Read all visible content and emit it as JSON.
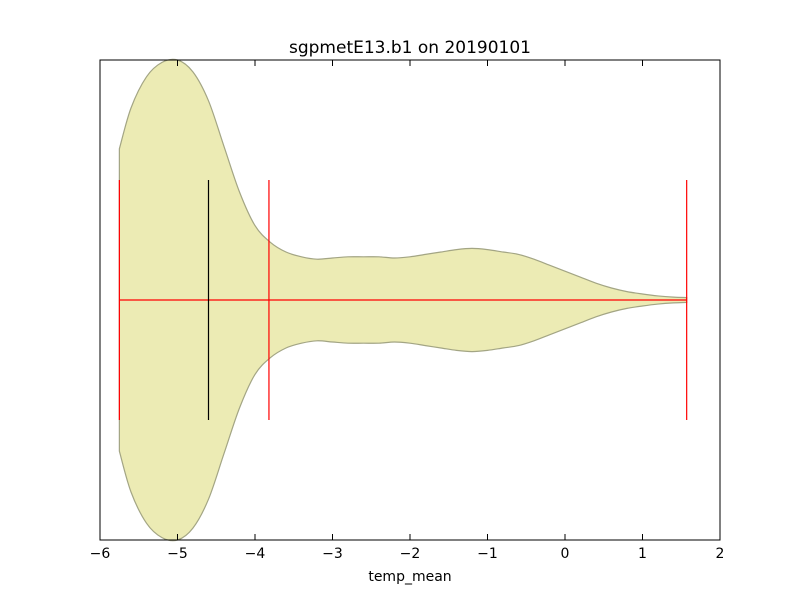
{
  "chart_data": {
    "type": "violin",
    "orientation": "horizontal",
    "title": "sgpmetE13.b1 on 20190101",
    "xlabel": "temp_mean",
    "ylabel": "",
    "xlim": [
      -6,
      2
    ],
    "xticks": [
      -6,
      -5,
      -4,
      -3,
      -2,
      -1,
      0,
      1,
      2
    ],
    "grid": false,
    "density_profile": [
      {
        "x": -5.75,
        "width": 0.63
      },
      {
        "x": -5.6,
        "width": 0.8
      },
      {
        "x": -5.4,
        "width": 0.93
      },
      {
        "x": -5.2,
        "width": 0.99
      },
      {
        "x": -5.0,
        "width": 1.0
      },
      {
        "x": -4.8,
        "width": 0.95
      },
      {
        "x": -4.6,
        "width": 0.83
      },
      {
        "x": -4.4,
        "width": 0.64
      },
      {
        "x": -4.2,
        "width": 0.45
      },
      {
        "x": -4.0,
        "width": 0.31
      },
      {
        "x": -3.8,
        "width": 0.24
      },
      {
        "x": -3.6,
        "width": 0.2
      },
      {
        "x": -3.4,
        "width": 0.18
      },
      {
        "x": -3.2,
        "width": 0.17
      },
      {
        "x": -3.0,
        "width": 0.175
      },
      {
        "x": -2.8,
        "width": 0.18
      },
      {
        "x": -2.6,
        "width": 0.18
      },
      {
        "x": -2.4,
        "width": 0.18
      },
      {
        "x": -2.2,
        "width": 0.175
      },
      {
        "x": -2.0,
        "width": 0.18
      },
      {
        "x": -1.8,
        "width": 0.19
      },
      {
        "x": -1.6,
        "width": 0.2
      },
      {
        "x": -1.4,
        "width": 0.21
      },
      {
        "x": -1.2,
        "width": 0.215
      },
      {
        "x": -1.0,
        "width": 0.21
      },
      {
        "x": -0.8,
        "width": 0.2
      },
      {
        "x": -0.6,
        "width": 0.19
      },
      {
        "x": -0.4,
        "width": 0.17
      },
      {
        "x": -0.2,
        "width": 0.145
      },
      {
        "x": 0.0,
        "width": 0.12
      },
      {
        "x": 0.2,
        "width": 0.095
      },
      {
        "x": 0.4,
        "width": 0.07
      },
      {
        "x": 0.6,
        "width": 0.05
      },
      {
        "x": 0.8,
        "width": 0.035
      },
      {
        "x": 1.0,
        "width": 0.025
      },
      {
        "x": 1.2,
        "width": 0.017
      },
      {
        "x": 1.4,
        "width": 0.012
      },
      {
        "x": 1.57,
        "width": 0.01
      }
    ],
    "min": -5.75,
    "max": 1.57,
    "median": -4.6,
    "quantile": -3.82,
    "colors": {
      "fill": "#ecebb4",
      "edge": "#a3a584",
      "extrema": "#ff0000",
      "median": "#000000"
    }
  }
}
